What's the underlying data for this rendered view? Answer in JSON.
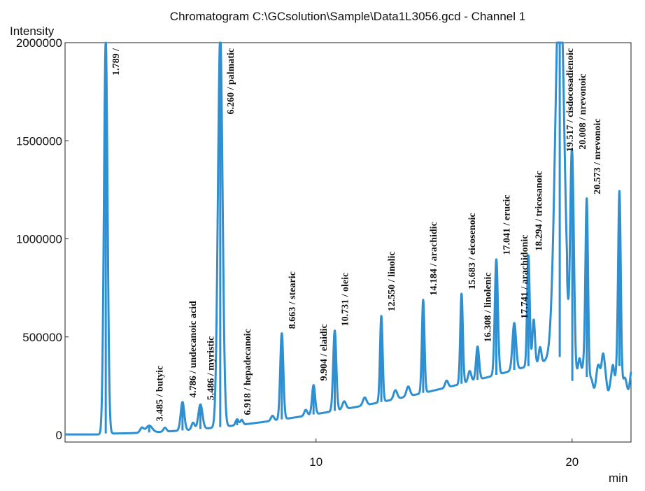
{
  "chart_data": {
    "type": "line",
    "title": "Chromatogram C:\\GCsolution\\Sample\\Data1L3056.gcd - Channel 1",
    "ylabel": "Intensity",
    "xlabel": "min",
    "xlim": [
      0.2,
      22.3
    ],
    "ylim": [
      0,
      2000000
    ],
    "y_ticks": [
      0,
      500000,
      1000000,
      1500000,
      2000000
    ],
    "y_tick_labels": [
      "0",
      "500000",
      "1000000",
      "1500000",
      "2000000"
    ],
    "x_ticks": [
      10,
      20
    ],
    "x_tick_labels": [
      "10",
      "20"
    ],
    "series": [
      {
        "color": "#2e8fd1",
        "peaks": [
          {
            "x": 1.789,
            "height": 2000000,
            "width": 0.07,
            "label": "1.789 /"
          },
          {
            "x": 3.485,
            "height": 35000,
            "width": 0.12,
            "label": "3.485 / butyic"
          },
          {
            "x": 4.786,
            "height": 145000,
            "width": 0.07,
            "label": "4.786 / undecanoic acid"
          },
          {
            "x": 5.486,
            "height": 125000,
            "width": 0.08,
            "label": "5.486 / myristic"
          },
          {
            "x": 6.26,
            "height": 2000000,
            "width": 0.09,
            "label": "6.260 / palmatic"
          },
          {
            "x": 6.918,
            "height": 30000,
            "width": 0.06,
            "label": "6.918 / hepadecanoic"
          },
          {
            "x": 8.663,
            "height": 440000,
            "width": 0.06,
            "label": "8.663 / stearic"
          },
          {
            "x": 9.904,
            "height": 150000,
            "width": 0.06,
            "label": "9.904 / elaidic"
          },
          {
            "x": 10.731,
            "height": 410000,
            "width": 0.06,
            "label": "10.731 / oleic"
          },
          {
            "x": 12.55,
            "height": 440000,
            "width": 0.05,
            "label": "12.550 / linolic"
          },
          {
            "x": 14.184,
            "height": 475000,
            "width": 0.05,
            "label": "14.184 / arachidic"
          },
          {
            "x": 15.683,
            "height": 460000,
            "width": 0.05,
            "label": "15.683 / eicosenoic"
          },
          {
            "x": 16.308,
            "height": 170000,
            "width": 0.06,
            "label": "16.308 / linolenic"
          },
          {
            "x": 17.041,
            "height": 590000,
            "width": 0.06,
            "label": "17.041 / erucic"
          },
          {
            "x": 17.741,
            "height": 240000,
            "width": 0.07,
            "label": "17.741 / arachidonic"
          },
          {
            "x": 18.294,
            "height": 565000,
            "width": 0.05,
            "label": "18.294 / tricosanoic"
          },
          {
            "x": 19.517,
            "height": 2000000,
            "width": 0.17,
            "label": "19.517 / cisdocosadienoic"
          },
          {
            "x": 20.008,
            "height": 1085000,
            "width": 0.07,
            "label": "20.008 / nrevonoic"
          },
          {
            "x": 20.573,
            "height": 910000,
            "width": 0.05,
            "label": "20.573 / nrevonoic"
          },
          {
            "x": 21.85,
            "height": 890000,
            "width": 0.05,
            "label": ""
          }
        ],
        "minor_peaks": [
          {
            "x": 3.2,
            "height": 25000,
            "width": 0.07
          },
          {
            "x": 4.1,
            "height": 20000,
            "width": 0.06
          },
          {
            "x": 5.2,
            "height": 35000,
            "width": 0.06
          },
          {
            "x": 7.1,
            "height": 25000,
            "width": 0.05
          },
          {
            "x": 8.3,
            "height": 25000,
            "width": 0.06
          },
          {
            "x": 9.6,
            "height": 30000,
            "width": 0.06
          },
          {
            "x": 11.1,
            "height": 40000,
            "width": 0.07
          },
          {
            "x": 11.9,
            "height": 40000,
            "width": 0.07
          },
          {
            "x": 13.1,
            "height": 45000,
            "width": 0.07
          },
          {
            "x": 13.6,
            "height": 50000,
            "width": 0.07
          },
          {
            "x": 15.1,
            "height": 35000,
            "width": 0.06
          },
          {
            "x": 16.0,
            "height": 55000,
            "width": 0.06
          },
          {
            "x": 18.5,
            "height": 230000,
            "width": 0.05
          },
          {
            "x": 18.75,
            "height": 80000,
            "width": 0.05
          },
          {
            "x": 19.95,
            "height": 120000,
            "width": 0.04
          },
          {
            "x": 20.3,
            "height": 90000,
            "width": 0.05
          },
          {
            "x": 21.2,
            "height": 90000,
            "width": 0.05
          },
          {
            "x": 21.6,
            "height": 60000,
            "width": 0.04
          }
        ]
      }
    ]
  }
}
